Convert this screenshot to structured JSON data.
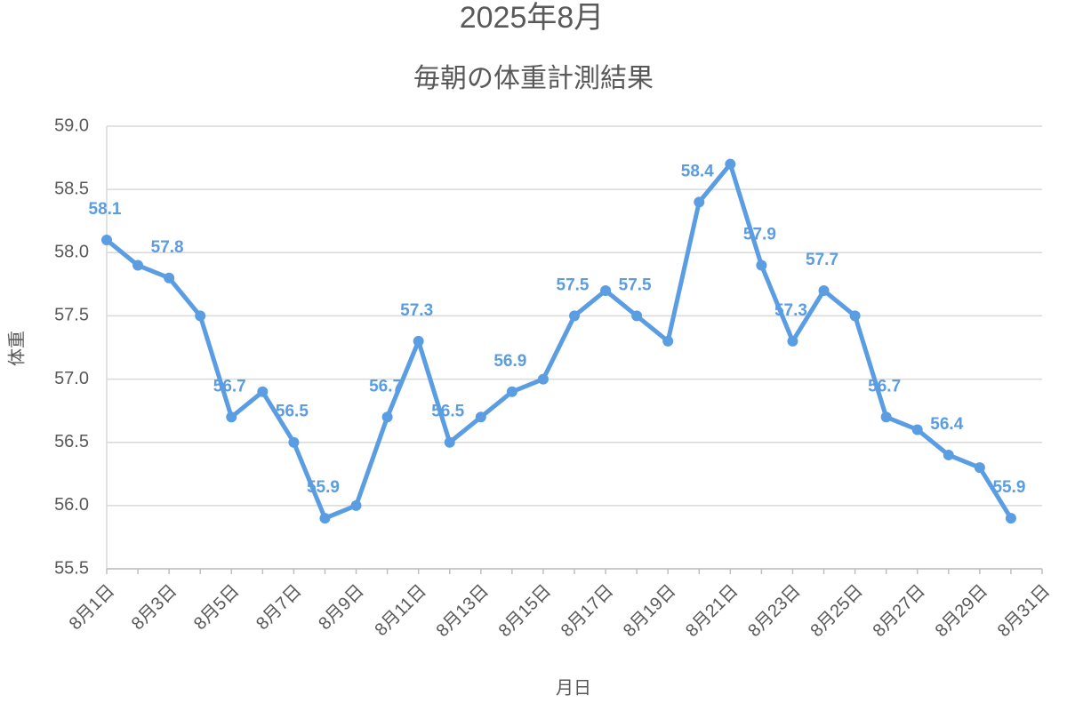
{
  "chart_data": {
    "type": "line",
    "title": "2025年8月",
    "subtitle": "毎朝の体重計測結果",
    "x_label": "月日",
    "y_label": "体重",
    "categories": [
      "8月1日",
      null,
      "8月3日",
      null,
      "8月5日",
      null,
      "8月7日",
      null,
      "8月9日",
      null,
      "8月11日",
      null,
      "8月13日",
      null,
      "8月15日",
      null,
      "8月17日",
      null,
      "8月19日",
      null,
      "8月21日",
      null,
      "8月23日",
      null,
      "8月25日",
      null,
      "8月27日",
      null,
      "8月29日",
      null,
      "8月31日"
    ],
    "series": [
      {
        "name": "体重",
        "color": "#5a9de2",
        "values": [
          58.1,
          57.9,
          57.8,
          57.5,
          56.7,
          56.9,
          56.5,
          55.9,
          56.0,
          56.7,
          57.3,
          56.5,
          56.7,
          56.9,
          57.0,
          57.5,
          57.7,
          57.5,
          57.3,
          58.4,
          58.7,
          57.9,
          57.3,
          57.7,
          57.5,
          56.7,
          56.6,
          56.4,
          56.3,
          55.9,
          null
        ],
        "value_labels": [
          "58.1",
          null,
          "57.8",
          null,
          "56.7",
          null,
          "56.5",
          "55.9",
          null,
          "56.7",
          "57.3",
          "56.5",
          null,
          "56.9",
          null,
          "57.5",
          null,
          "57.5",
          null,
          "58.4",
          null,
          "57.9",
          "57.3",
          "57.7",
          null,
          "56.7",
          null,
          "56.4",
          null,
          "55.9",
          null
        ]
      }
    ],
    "ylim": [
      55.5,
      59.0
    ],
    "yticks": [
      55.5,
      {
        "value": 56.0,
        "label": "56.0"
      },
      56.5,
      {
        "value": 57.0,
        "label": "57.0"
      },
      57.5,
      {
        "value": 58.0,
        "label": "58.0"
      },
      58.5,
      {
        "value": 59.0,
        "label": "59.0"
      }
    ],
    "grid": true
  }
}
